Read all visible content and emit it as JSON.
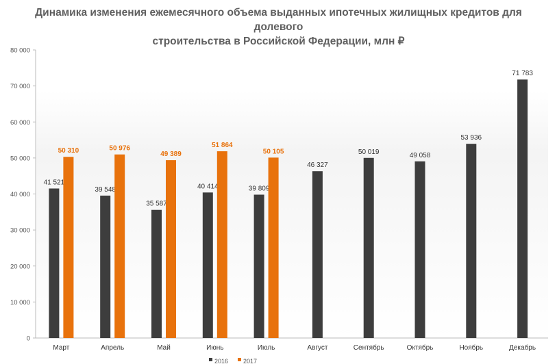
{
  "chart_data": {
    "type": "bar",
    "title_lines": [
      "Динамика изменения ежемесячного объема выданных ипотечных жилищных кредитов для долевого",
      "строительства в Российской Федерации, млн ₽"
    ],
    "categories": [
      "Март",
      "Апрель",
      "Май",
      "Июнь",
      "Июль",
      "Август",
      "Сентябрь",
      "Октябрь",
      "Ноябрь",
      "Декабрь"
    ],
    "series": [
      {
        "name": "2016",
        "color": "#3d3d3d",
        "values": [
          41521,
          39548,
          35587,
          40414,
          39809,
          46327,
          50019,
          49058,
          53936,
          71783
        ],
        "labels": [
          "41 521",
          "39 548",
          "35 587",
          "40 414",
          "39 809",
          "46 327",
          "50 019",
          "49 058",
          "53 936",
          "71 783"
        ]
      },
      {
        "name": "2017",
        "color": "#e8720c",
        "values": [
          50310,
          50976,
          49389,
          51864,
          50105,
          null,
          null,
          null,
          null,
          null
        ],
        "labels": [
          "50 310",
          "50 976",
          "49 389",
          "51 864",
          "50 105",
          "",
          "",
          "",
          "",
          ""
        ]
      }
    ],
    "y_ticks": [
      0,
      10000,
      20000,
      30000,
      40000,
      50000,
      60000,
      70000,
      80000
    ],
    "y_tick_labels": [
      "0",
      "10 000",
      "20 000",
      "30 000",
      "40 000",
      "50 000",
      "60 000",
      "70 000",
      "80 000"
    ],
    "ylim": [
      0,
      80000
    ],
    "xlabel": "",
    "ylabel": "",
    "grid": false,
    "legend_position": "bottom"
  }
}
